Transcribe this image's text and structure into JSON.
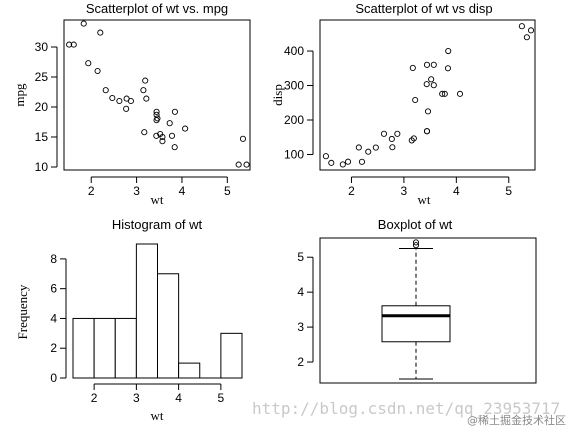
{
  "chart_data": [
    {
      "type": "scatter",
      "title": "Scatterplot of wt vs. mpg",
      "xlabel": "wt",
      "ylabel": "mpg",
      "xlim": [
        1.4,
        5.5
      ],
      "ylim": [
        9.5,
        34.5
      ],
      "x_ticks": [
        2,
        3,
        4,
        5
      ],
      "y_ticks": [
        10,
        15,
        20,
        25,
        30
      ],
      "points": [
        {
          "x": 2.62,
          "y": 21.0
        },
        {
          "x": 2.875,
          "y": 21.0
        },
        {
          "x": 2.32,
          "y": 22.8
        },
        {
          "x": 3.215,
          "y": 21.4
        },
        {
          "x": 3.44,
          "y": 18.7
        },
        {
          "x": 3.46,
          "y": 18.1
        },
        {
          "x": 3.57,
          "y": 14.3
        },
        {
          "x": 3.19,
          "y": 24.4
        },
        {
          "x": 3.15,
          "y": 22.8
        },
        {
          "x": 3.44,
          "y": 19.2
        },
        {
          "x": 3.44,
          "y": 17.8
        },
        {
          "x": 4.07,
          "y": 16.4
        },
        {
          "x": 3.73,
          "y": 17.3
        },
        {
          "x": 3.78,
          "y": 15.2
        },
        {
          "x": 5.25,
          "y": 10.4
        },
        {
          "x": 5.424,
          "y": 10.4
        },
        {
          "x": 5.345,
          "y": 14.7
        },
        {
          "x": 2.2,
          "y": 32.4
        },
        {
          "x": 1.615,
          "y": 30.4
        },
        {
          "x": 1.835,
          "y": 33.9
        },
        {
          "x": 2.465,
          "y": 21.5
        },
        {
          "x": 3.52,
          "y": 15.5
        },
        {
          "x": 3.435,
          "y": 15.2
        },
        {
          "x": 3.84,
          "y": 13.3
        },
        {
          "x": 3.845,
          "y": 19.2
        },
        {
          "x": 1.935,
          "y": 27.3
        },
        {
          "x": 2.14,
          "y": 26.0
        },
        {
          "x": 1.513,
          "y": 30.4
        },
        {
          "x": 3.17,
          "y": 15.8
        },
        {
          "x": 2.77,
          "y": 19.7
        },
        {
          "x": 3.57,
          "y": 15.0
        },
        {
          "x": 2.78,
          "y": 21.4
        }
      ]
    },
    {
      "type": "scatter",
      "title": "Scatterplot of wt vs disp",
      "xlabel": "wt",
      "ylabel": "disp",
      "xlim": [
        1.4,
        5.5
      ],
      "ylim": [
        55,
        490
      ],
      "x_ticks": [
        2,
        3,
        4,
        5
      ],
      "y_ticks": [
        100,
        200,
        300,
        400
      ],
      "points": [
        {
          "x": 2.62,
          "y": 160
        },
        {
          "x": 2.875,
          "y": 160
        },
        {
          "x": 2.32,
          "y": 108
        },
        {
          "x": 3.215,
          "y": 258
        },
        {
          "x": 3.44,
          "y": 360
        },
        {
          "x": 3.46,
          "y": 225
        },
        {
          "x": 3.57,
          "y": 360
        },
        {
          "x": 3.19,
          "y": 146.7
        },
        {
          "x": 3.15,
          "y": 140.8
        },
        {
          "x": 3.44,
          "y": 167.6
        },
        {
          "x": 3.44,
          "y": 167.6
        },
        {
          "x": 4.07,
          "y": 275.8
        },
        {
          "x": 3.73,
          "y": 275.8
        },
        {
          "x": 3.78,
          "y": 275.8
        },
        {
          "x": 5.25,
          "y": 472
        },
        {
          "x": 5.424,
          "y": 460
        },
        {
          "x": 5.345,
          "y": 440
        },
        {
          "x": 2.2,
          "y": 78.7
        },
        {
          "x": 1.615,
          "y": 75.7
        },
        {
          "x": 1.835,
          "y": 71.1
        },
        {
          "x": 2.465,
          "y": 120.1
        },
        {
          "x": 3.52,
          "y": 318
        },
        {
          "x": 3.435,
          "y": 304
        },
        {
          "x": 3.84,
          "y": 350
        },
        {
          "x": 3.845,
          "y": 400
        },
        {
          "x": 1.935,
          "y": 79
        },
        {
          "x": 2.14,
          "y": 120.3
        },
        {
          "x": 1.513,
          "y": 95.1
        },
        {
          "x": 3.17,
          "y": 351
        },
        {
          "x": 2.77,
          "y": 145
        },
        {
          "x": 3.57,
          "y": 301
        },
        {
          "x": 2.78,
          "y": 121
        }
      ]
    },
    {
      "type": "bar",
      "title": "Histogram of wt",
      "xlabel": "wt",
      "ylabel": "Frequency",
      "bins": [
        {
          "from": 1.5,
          "to": 2.0,
          "count": 4
        },
        {
          "from": 2.0,
          "to": 2.5,
          "count": 4
        },
        {
          "from": 2.5,
          "to": 3.0,
          "count": 4
        },
        {
          "from": 3.0,
          "to": 3.5,
          "count": 9
        },
        {
          "from": 3.5,
          "to": 4.0,
          "count": 7
        },
        {
          "from": 4.0,
          "to": 4.5,
          "count": 1
        },
        {
          "from": 4.5,
          "to": 5.0,
          "count": 0
        },
        {
          "from": 5.0,
          "to": 5.5,
          "count": 3
        }
      ],
      "xlim": [
        1.5,
        5.5
      ],
      "ylim": [
        0,
        9
      ],
      "x_ticks": [
        2,
        3,
        4,
        5
      ],
      "y_ticks": [
        0,
        2,
        4,
        6,
        8
      ]
    },
    {
      "type": "box",
      "title": "Boxplot of wt",
      "ylim": [
        1.4,
        5.55
      ],
      "y_ticks": [
        2,
        3,
        4,
        5
      ],
      "whisker_low": 1.513,
      "q1": 2.58,
      "median": 3.325,
      "q3": 3.61,
      "whisker_high": 5.25,
      "outliers": [
        5.345,
        5.424
      ]
    }
  ],
  "watermark": {
    "url": "http://blog.csdn.net/qq_23953717",
    "credit": "@稀土掘金技术社区"
  }
}
